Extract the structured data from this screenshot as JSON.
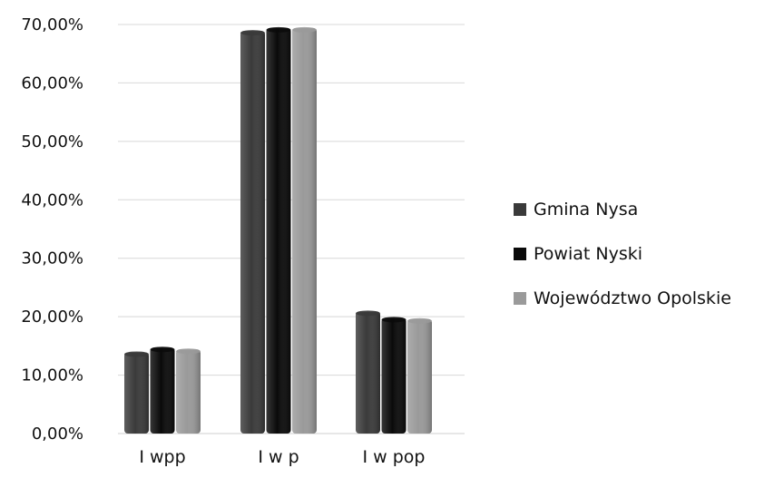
{
  "chart_data": {
    "type": "bar",
    "categories": [
      "I wpp",
      "I w p",
      "I w pop"
    ],
    "series": [
      {
        "name": "Gmina Nysa",
        "values": [
          13.9,
          68.9,
          20.9
        ],
        "color": "#3a3a3a"
      },
      {
        "name": "Powiat Nyski",
        "values": [
          14.7,
          69.4,
          19.8
        ],
        "color": "#0a0a0a"
      },
      {
        "name": "Województwo Opolskie",
        "values": [
          14.4,
          69.4,
          19.6
        ],
        "color": "#9a9a9a"
      }
    ],
    "y_ticks": [
      "0,00%",
      "10,00%",
      "20,00%",
      "30,00%",
      "40,00%",
      "50,00%",
      "60,00%",
      "70,00%"
    ],
    "ylim": [
      0,
      70
    ],
    "grid": true,
    "legend_position": "right"
  }
}
